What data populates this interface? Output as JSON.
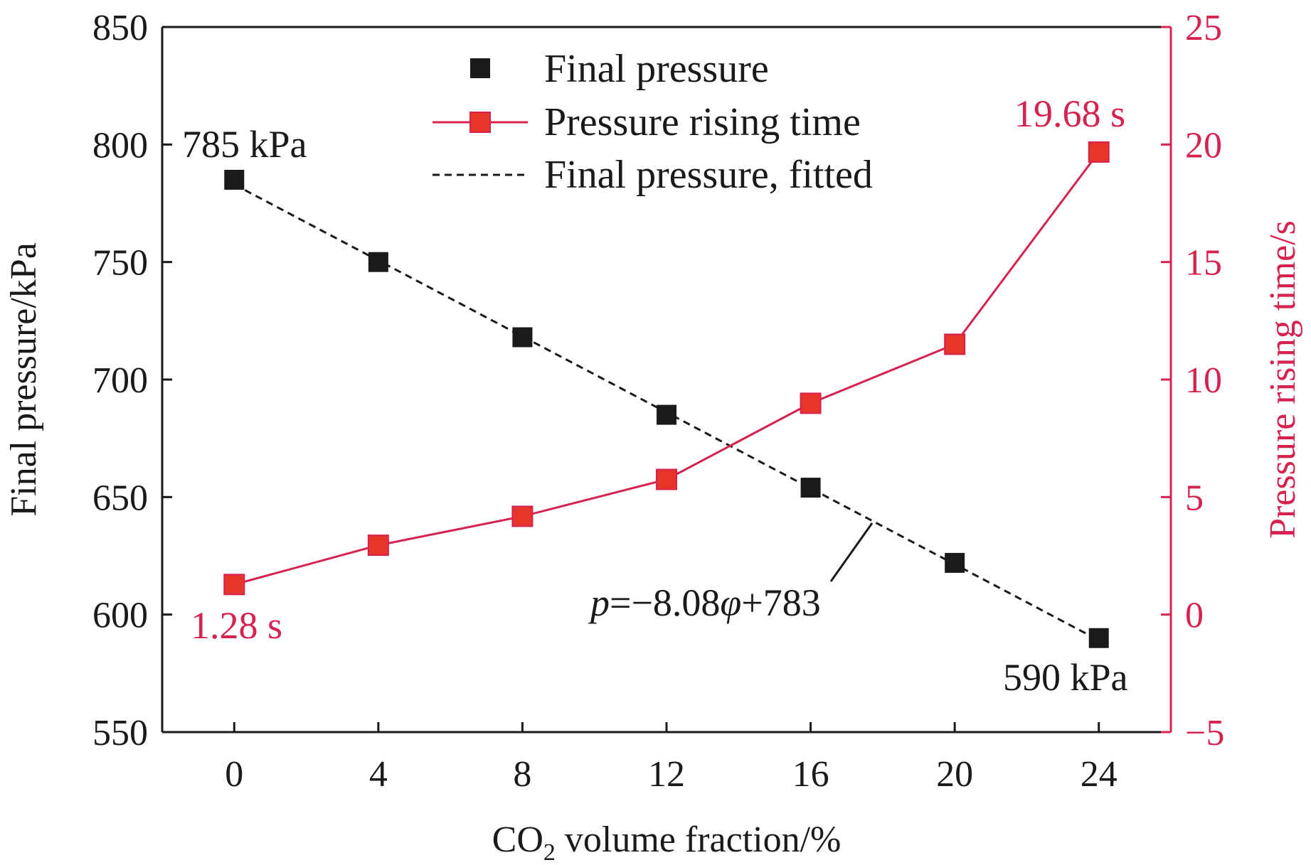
{
  "chart_data": {
    "type": "line",
    "xlabel_prefix": "CO",
    "xlabel_sub": "2",
    "xlabel_suffix": " volume fraction/%",
    "ylabel_left": "Final pressure/kPa",
    "ylabel_right": "Pressure rising time/s",
    "x": [
      0,
      4,
      8,
      12,
      16,
      20,
      24
    ],
    "x_tick_labels": [
      "0",
      "4",
      "8",
      "12",
      "16",
      "20",
      "24"
    ],
    "xlim": [
      -2,
      26
    ],
    "ylim_left": [
      550,
      850
    ],
    "y_left_tick_labels": [
      "550",
      "600",
      "650",
      "700",
      "750",
      "800",
      "850"
    ],
    "ylim_right": [
      -5,
      25
    ],
    "y_right_tick_labels": [
      "−5",
      "0",
      "5",
      "10",
      "15",
      "20",
      "25"
    ],
    "series": [
      {
        "name": "Final pressure",
        "axis": "left",
        "style": "markers",
        "color": "#1a1a1a",
        "values": [
          785,
          750,
          718,
          685,
          654,
          622,
          590
        ]
      },
      {
        "name": "Pressure rising time",
        "axis": "right",
        "style": "line+markers",
        "color": "#e8352a",
        "line_color": "#d6224f",
        "values": [
          1.28,
          2.95,
          4.18,
          5.75,
          8.99,
          11.5,
          19.68
        ]
      },
      {
        "name": "Final pressure, fitted",
        "axis": "left",
        "style": "dashed",
        "color": "#1a1a1a",
        "slope": -8.08,
        "intercept": 783
      }
    ],
    "annotations": {
      "p_start": "785 kPa",
      "p_end": "590 kPa",
      "t_start": "1.28 s",
      "t_end": "19.68 s",
      "eq_var": "p",
      "eq_mid": "=−8.08",
      "eq_phi": "φ",
      "eq_end": "+783"
    },
    "colors": {
      "left_axis": "#1a1a1a",
      "right_axis": "#d6224f",
      "label_red": "#d6224f"
    }
  }
}
